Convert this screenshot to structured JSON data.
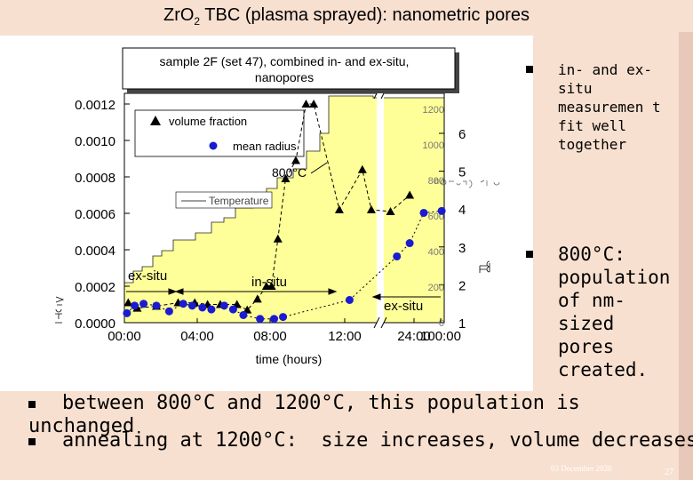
{
  "slide": {
    "title_main": "ZrO",
    "title_sub": "2",
    "title_rest": " TBC (plasma sprayed):   nanometric pores",
    "date": "03 December 2020",
    "page": "27"
  },
  "bullets_right": [
    {
      "text": "in- and ex-situ measuremen t fit well together"
    },
    {
      "text": "800°C: population of nm-sized pores created."
    }
  ],
  "bullets_bottom": [
    {
      "text": "between 800°C and 1200°C, this population is unchanged"
    },
    {
      "text": "annealing at 1200°C:  size increases, volume decreases"
    }
  ],
  "chart_data": {
    "type": "scatter",
    "title": "sample 2F (set 47), combined in- and ex-situ, nanopores",
    "xlabel": "time (hours)",
    "x_ticks": [
      "00:00",
      "04:00",
      "08:00",
      "12:00",
      "24:00",
      "100:00"
    ],
    "y_left_ticks": [
      "0.0000",
      "0.0002",
      "0.0004",
      "0.0006",
      "0.0008",
      "0.0010",
      "0.0012"
    ],
    "y_right_ticks": [
      "1",
      "2",
      "3",
      "4",
      "5",
      "6"
    ],
    "temp_ticks": [
      "0",
      "200",
      "400",
      "600",
      "800",
      "1000",
      "1200"
    ],
    "ylim_left": [
      0,
      0.0012
    ],
    "ylim_right": [
      1,
      6
    ],
    "legend": [
      "volume fraction",
      "mean radius"
    ],
    "temp_legend": "Temperature",
    "annotations": [
      "800°C",
      "ex-situ",
      "in-situ",
      "ex-situ"
    ],
    "series": [
      {
        "name": "volume fraction",
        "marker": "triangle",
        "points": [
          [
            0.3,
            0.00011
          ],
          [
            1.0,
            8e-05
          ],
          [
            2.5,
            9e-05
          ],
          [
            4.2,
            0.00011
          ],
          [
            5.5,
            0.00011
          ],
          [
            6.5,
            0.0001
          ],
          [
            7.5,
            0.0001
          ],
          [
            8.8,
            0.0001
          ],
          [
            9.6,
            7e-05
          ],
          [
            10.4,
            0.00013
          ],
          [
            11.1,
            0.0002
          ],
          [
            11.5,
            0.0002
          ],
          [
            12.0,
            0.00046
          ],
          [
            12.6,
            0.00079
          ],
          [
            13.4,
            0.00089
          ],
          [
            14.2,
            0.0012
          ],
          [
            14.8,
            0.0012
          ],
          [
            16.8,
            0.00062
          ],
          [
            18.6,
            0.00084
          ],
          [
            19.3,
            0.00062
          ],
          [
            20.8,
            0.00061
          ],
          [
            22.3,
            0.0007
          ]
        ]
      },
      {
        "name": "mean radius",
        "marker": "circle",
        "points": [
          [
            0.2,
            1.25
          ],
          [
            0.8,
            1.45
          ],
          [
            1.5,
            1.5
          ],
          [
            2.5,
            1.45
          ],
          [
            3.5,
            1.3
          ],
          [
            4.6,
            1.5
          ],
          [
            5.3,
            1.45
          ],
          [
            6.1,
            1.4
          ],
          [
            6.8,
            1.35
          ],
          [
            7.8,
            1.45
          ],
          [
            8.5,
            1.35
          ],
          [
            9.3,
            1.2
          ],
          [
            10.6,
            1.1
          ],
          [
            11.7,
            1.1
          ],
          [
            12.4,
            1.15
          ],
          [
            17.6,
            1.6
          ],
          [
            21.3,
            2.75
          ],
          [
            22.3,
            3.1
          ],
          [
            23.4,
            3.9
          ],
          [
            24.8,
            3.95
          ]
        ]
      }
    ]
  }
}
